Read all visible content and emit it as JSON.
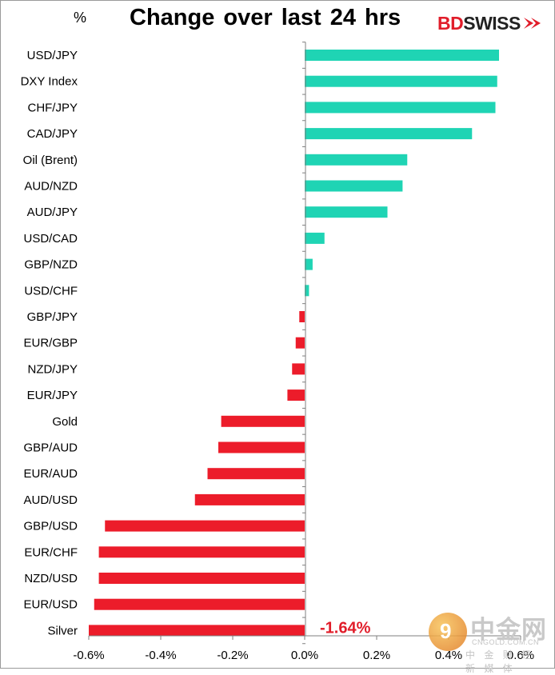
{
  "header": {
    "unit": "%",
    "title": "Change over last 24 hrs",
    "logo_bd": "BD",
    "logo_swiss": "SWISS"
  },
  "watermark": {
    "brand": "中金网",
    "domain": "CNGOLD.COM.CN",
    "subtitle": "中 金 财 经 新 媒 体"
  },
  "colors": {
    "positive": "#1fd4b4",
    "negative": "#ec1c2a",
    "annotation": "#e11d2a"
  },
  "chart_data": {
    "type": "bar",
    "orientation": "horizontal",
    "title": "Change over last 24 hrs",
    "ylabel": "%",
    "xlim": [
      -0.6,
      0.6
    ],
    "xticks": [
      -0.6,
      -0.4,
      -0.2,
      0.0,
      0.2,
      0.4,
      0.6
    ],
    "xtick_labels": [
      "-0.6%",
      "-0.4%",
      "-0.2%",
      "0.0%",
      "0.2%",
      "0.4%",
      "0.6%"
    ],
    "grid": false,
    "legend": "none",
    "categories": [
      "USD/JPY",
      "DXY Index",
      "CHF/JPY",
      "CAD/JPY",
      "Oil (Brent)",
      "AUD/NZD",
      "AUD/JPY",
      "USD/CAD",
      "GBP/NZD",
      "USD/CHF",
      "GBP/JPY",
      "EUR/GBP",
      "NZD/JPY",
      "EUR/JPY",
      "Gold",
      "GBP/AUD",
      "EUR/AUD",
      "AUD/USD",
      "GBP/USD",
      "EUR/CHF",
      "NZD/USD",
      "EUR/USD",
      "Silver"
    ],
    "values": [
      0.54,
      0.535,
      0.53,
      0.465,
      0.285,
      0.272,
      0.23,
      0.055,
      0.022,
      0.012,
      -0.015,
      -0.025,
      -0.035,
      -0.048,
      -0.232,
      -0.24,
      -0.27,
      -0.305,
      -0.555,
      -0.572,
      -0.572,
      -0.585,
      -0.6
    ],
    "annotations": [
      {
        "category": "Silver",
        "text": "-1.64%"
      }
    ]
  }
}
